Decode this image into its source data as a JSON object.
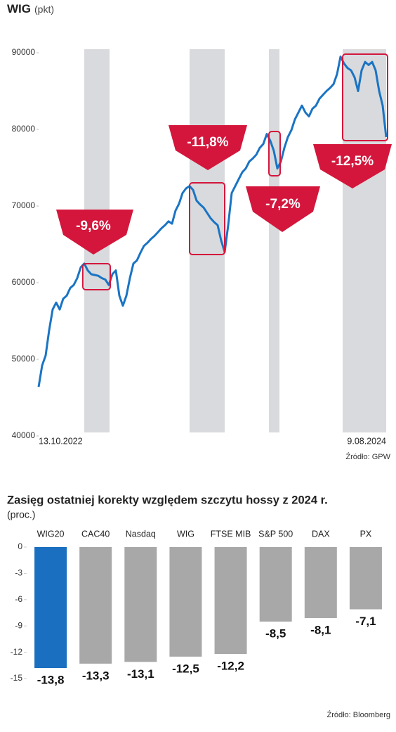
{
  "chart_data": [
    {
      "type": "line",
      "title": "WIG",
      "y_label": "(pkt)",
      "source": "Źródło: GPW",
      "categories": [
        "13.10.2022",
        null,
        null,
        null,
        null,
        null,
        null,
        null,
        null,
        null,
        null,
        null,
        null,
        null,
        null,
        null,
        null,
        null,
        null,
        null,
        null,
        null,
        null,
        null,
        null,
        null,
        null,
        null,
        null,
        null,
        null,
        null,
        null,
        null,
        null,
        null,
        null,
        null,
        null,
        null,
        null,
        null,
        null,
        null,
        null,
        null,
        null,
        null,
        null,
        null,
        null,
        null,
        null,
        null,
        null,
        null,
        null,
        null,
        null,
        null,
        null,
        null,
        null,
        null,
        null,
        null,
        null,
        null,
        null,
        null,
        null,
        null,
        null,
        null,
        null,
        null,
        null,
        null,
        null,
        null,
        null,
        null,
        null,
        null,
        null,
        null,
        null,
        null,
        null,
        null,
        null,
        null,
        null,
        null,
        null,
        null,
        null,
        null,
        null,
        "9.08.2024"
      ],
      "series": [
        {
          "name": "WIG",
          "color": "#1a74c4",
          "values": [
            46400,
            49200,
            50500,
            53800,
            56500,
            57400,
            56500,
            57900,
            58300,
            59300,
            59700,
            60600,
            62000,
            62500,
            61600,
            61100,
            61000,
            60900,
            60600,
            60400,
            59700,
            61100,
            61600,
            58300,
            57000,
            58300,
            60600,
            62500,
            62900,
            63900,
            64800,
            65200,
            65700,
            66100,
            66600,
            67100,
            67500,
            68000,
            67700,
            69400,
            70300,
            71700,
            72300,
            72600,
            72100,
            70700,
            70200,
            69800,
            69100,
            68400,
            67900,
            67500,
            65500,
            64000,
            67500,
            71700,
            72600,
            73500,
            74400,
            74900,
            75800,
            76200,
            76700,
            77600,
            78100,
            79400,
            78500,
            77200,
            74900,
            75800,
            77600,
            79000,
            79900,
            81300,
            82200,
            83100,
            82200,
            81700,
            82700,
            83100,
            84000,
            84500,
            85000,
            85400,
            85900,
            87200,
            89500,
            88600,
            88000,
            87700,
            86800,
            85000,
            87700,
            88800,
            88400,
            88800,
            87700,
            85000,
            83100,
            79000
          ]
        }
      ],
      "ylim": [
        40000,
        90000
      ],
      "yticks": [
        40000,
        50000,
        60000,
        70000,
        80000,
        90000
      ],
      "annotations": [
        "-9,6%",
        "-11,8%",
        "-7,2%",
        "-12,5%"
      ]
    },
    {
      "type": "bar",
      "title": "Zasięg ostatniej korekty względem szczytu hossy z 2024 r.",
      "y_label": "(proc.)",
      "source": "Źródło: Bloomberg",
      "categories": [
        "WIG20",
        "CAC40",
        "Nasdaq",
        "WIG",
        "FTSE MIB",
        "S&P 500",
        "DAX",
        "PX"
      ],
      "values": [
        -13.8,
        -13.3,
        -13.1,
        -12.5,
        -12.2,
        -8.5,
        -8.1,
        -7.1
      ],
      "value_labels": [
        "-13,8",
        "-13,3",
        "-13,1",
        "-12,5",
        "-12,2",
        "-8,5",
        "-8,1",
        "-7,1"
      ],
      "colors": [
        "#1a6fc0",
        "#a8a8a8",
        "#a8a8a8",
        "#a8a8a8",
        "#a8a8a8",
        "#a8a8a8",
        "#a8a8a8",
        "#a8a8a8"
      ],
      "ylim": [
        -15,
        0
      ],
      "yticks": [
        0,
        -3,
        -6,
        -9,
        -12,
        -15
      ]
    }
  ]
}
